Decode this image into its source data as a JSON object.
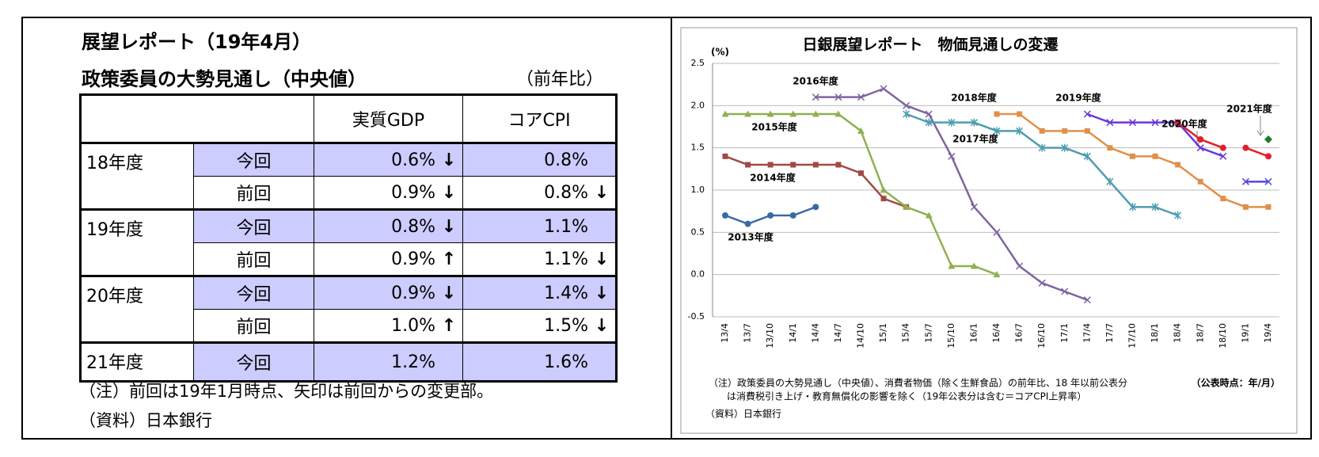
{
  "header": {
    "title": "展望レポート（19年4月）",
    "subtitle": "政策委員の大勢見通し（中央値）",
    "unit": "（前年比）"
  },
  "table": {
    "columns": [
      "実質GDP",
      "コアCPI"
    ],
    "groups": [
      {
        "year": "18年度",
        "rows": [
          {
            "kind": "今回",
            "gdp": "0.6%",
            "gdp_arrow": "↓",
            "cpi": "0.8%"
          },
          {
            "kind": "前回",
            "gdp": "0.9%",
            "gdp_arrow": "↓",
            "cpi": "0.8%",
            "cpi_arrow": "↓"
          }
        ]
      },
      {
        "year": "19年度",
        "rows": [
          {
            "kind": "今回",
            "gdp": "0.8%",
            "gdp_arrow": "↓",
            "cpi": "1.1%"
          },
          {
            "kind": "前回",
            "gdp": "0.9%",
            "gdp_arrow": "↑",
            "cpi": "1.1%",
            "cpi_arrow": "↓"
          }
        ]
      },
      {
        "year": "20年度",
        "rows": [
          {
            "kind": "今回",
            "gdp": "0.9%",
            "gdp_arrow": "↓",
            "cpi": "1.4%",
            "cpi_arrow": "↓"
          },
          {
            "kind": "前回",
            "gdp": "1.0%",
            "gdp_arrow": "↑",
            "cpi": "1.5%",
            "cpi_arrow": "↓"
          }
        ]
      },
      {
        "year": "21年度",
        "rows": [
          {
            "kind": "今回",
            "gdp": "1.2%",
            "cpi": "1.6%"
          }
        ]
      }
    ]
  },
  "notes": {
    "note": "（注）前回は19年1月時点、矢印は前回からの変更部。",
    "source": "（資料）日本銀行"
  },
  "chart_data": {
    "type": "line",
    "title": "日銀展望レポート　物価見通しの変遷",
    "y_unit": "(%)",
    "categories": [
      "13/4",
      "13/7",
      "13/10",
      "14/1",
      "14/4",
      "14/7",
      "14/10",
      "15/1",
      "15/4",
      "15/7",
      "15/10",
      "16/1",
      "16/4",
      "16/7",
      "16/10",
      "17/1",
      "17/4",
      "17/7",
      "17/10",
      "18/1",
      "18/4",
      "18/7",
      "18/10",
      "19/1",
      "19/4"
    ],
    "ylim": [
      -0.5,
      2.5
    ],
    "yticks": [
      {
        "value": 2.5,
        "label": "2.5"
      },
      {
        "value": 2,
        "label": "2.0"
      },
      1.5,
      {
        "value": 1,
        "label": "1.0"
      },
      0.5,
      {
        "value": 0,
        "label": "0.0"
      },
      -0.5
    ],
    "grid": true,
    "series": [
      {
        "name": "2013年度",
        "color": "#3a6aa5",
        "marker": "circle",
        "values": [
          0.7,
          0.6,
          0.7,
          0.7,
          0.8,
          null,
          null,
          null,
          null,
          null,
          null,
          null,
          null,
          null,
          null,
          null,
          null,
          null,
          null,
          null,
          null,
          null,
          null,
          null,
          null
        ]
      },
      {
        "name": "2014年度",
        "color": "#a04a45",
        "marker": "square",
        "values": [
          1.4,
          1.3,
          1.3,
          1.3,
          1.3,
          1.3,
          1.2,
          0.9,
          0.8,
          null,
          null,
          null,
          null,
          null,
          null,
          null,
          null,
          null,
          null,
          null,
          null,
          null,
          null,
          null,
          null
        ]
      },
      {
        "name": "2015年度",
        "color": "#8fb050",
        "marker": "triangle",
        "values": [
          1.9,
          1.9,
          1.9,
          1.9,
          1.9,
          1.9,
          1.7,
          1.0,
          0.8,
          0.7,
          0.1,
          0.1,
          0.0,
          null,
          null,
          null,
          null,
          null,
          null,
          null,
          null,
          null,
          null,
          null,
          null
        ]
      },
      {
        "name": "2016年度",
        "color": "#7e65a0",
        "marker": "x",
        "values": [
          null,
          null,
          null,
          null,
          2.1,
          2.1,
          2.1,
          2.2,
          2.0,
          1.9,
          1.4,
          0.8,
          0.5,
          0.1,
          -0.1,
          -0.2,
          -0.3,
          null,
          null,
          null,
          null,
          null,
          null,
          null,
          null
        ]
      },
      {
        "name": "2017年度",
        "color": "#4d9db0",
        "marker": "asterisk",
        "values": [
          null,
          null,
          null,
          null,
          null,
          null,
          null,
          null,
          1.9,
          1.8,
          1.8,
          1.8,
          1.7,
          1.7,
          1.5,
          1.5,
          1.4,
          1.1,
          0.8,
          0.8,
          0.7,
          null,
          null,
          null,
          null
        ]
      },
      {
        "name": "2018年度",
        "color": "#e0904a",
        "marker": "square",
        "values": [
          null,
          null,
          null,
          null,
          null,
          null,
          null,
          null,
          null,
          null,
          null,
          null,
          1.9,
          1.9,
          1.7,
          1.7,
          1.7,
          1.5,
          1.4,
          1.4,
          1.3,
          1.1,
          0.9,
          0.8,
          0.8
        ]
      },
      {
        "name": "2019年度",
        "color": "#6a38d8",
        "marker": "x",
        "values": [
          null,
          null,
          null,
          null,
          null,
          null,
          null,
          null,
          null,
          null,
          null,
          null,
          null,
          null,
          null,
          null,
          1.9,
          1.8,
          1.8,
          1.8,
          1.8,
          1.5,
          1.4,
          null,
          null
        ]
      },
      {
        "color": "#5048e0",
        "marker": "x",
        "values": [
          null,
          null,
          null,
          null,
          null,
          null,
          null,
          null,
          null,
          null,
          null,
          null,
          null,
          null,
          null,
          null,
          null,
          null,
          null,
          null,
          null,
          null,
          null,
          1.1,
          1.1
        ]
      },
      {
        "name": "2020年度",
        "color": "#e0202a",
        "marker": "circle",
        "values": [
          null,
          null,
          null,
          null,
          null,
          null,
          null,
          null,
          null,
          null,
          null,
          null,
          null,
          null,
          null,
          null,
          null,
          null,
          null,
          null,
          1.8,
          1.6,
          1.5,
          null,
          null
        ]
      },
      {
        "color": "#e0202a",
        "marker": "circle",
        "values": [
          null,
          null,
          null,
          null,
          null,
          null,
          null,
          null,
          null,
          null,
          null,
          null,
          null,
          null,
          null,
          null,
          null,
          null,
          null,
          null,
          null,
          null,
          null,
          1.5,
          1.4
        ]
      },
      {
        "name": "2021年度",
        "color": "#1f7a2a",
        "marker": "diamond",
        "values": [
          null,
          null,
          null,
          null,
          null,
          null,
          null,
          null,
          null,
          null,
          null,
          null,
          null,
          null,
          null,
          null,
          null,
          null,
          null,
          null,
          null,
          null,
          null,
          null,
          1.6
        ]
      }
    ],
    "notes": [
      "（注）政策委員の大勢見通し（中央値）、消費者物価（除く生鮮食品）の前年比、18 年以前公表分",
      "は消費税引き上げ・教育無償化の影響を除く（19年公表分は含む＝コアCPI上昇率）"
    ],
    "time_label": "（公表時点：年/月）",
    "source": "（資料）日本銀行"
  }
}
